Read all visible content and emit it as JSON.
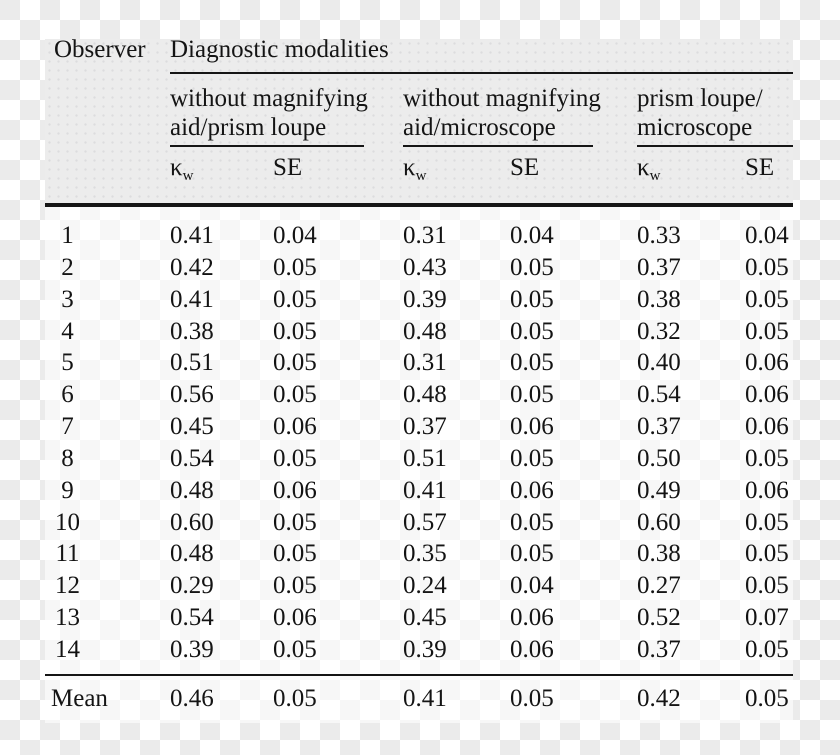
{
  "table": {
    "observer_header": "Observer",
    "modalities_header": "Diagnostic modalities",
    "groups": [
      {
        "line1": "without magnifying",
        "line2": "aid/prism loupe"
      },
      {
        "line1": "without magnifying",
        "line2": "aid/microscope"
      },
      {
        "line1": "prism loupe/",
        "line2": "microscope"
      }
    ],
    "stat_headers": {
      "kappa": "κ",
      "kappa_sub": "w",
      "se": "SE"
    },
    "rows": [
      {
        "observer": "1",
        "values": [
          "0.41",
          "0.04",
          "0.31",
          "0.04",
          "0.33",
          "0.04"
        ]
      },
      {
        "observer": "2",
        "values": [
          "0.42",
          "0.05",
          "0.43",
          "0.05",
          "0.37",
          "0.05"
        ]
      },
      {
        "observer": "3",
        "values": [
          "0.41",
          "0.05",
          "0.39",
          "0.05",
          "0.38",
          "0.05"
        ]
      },
      {
        "observer": "4",
        "values": [
          "0.38",
          "0.05",
          "0.48",
          "0.05",
          "0.32",
          "0.05"
        ]
      },
      {
        "observer": "5",
        "values": [
          "0.51",
          "0.05",
          "0.31",
          "0.05",
          "0.40",
          "0.06"
        ]
      },
      {
        "observer": "6",
        "values": [
          "0.56",
          "0.05",
          "0.48",
          "0.05",
          "0.54",
          "0.06"
        ]
      },
      {
        "observer": "7",
        "values": [
          "0.45",
          "0.06",
          "0.37",
          "0.06",
          "0.37",
          "0.06"
        ]
      },
      {
        "observer": "8",
        "values": [
          "0.54",
          "0.05",
          "0.51",
          "0.05",
          "0.50",
          "0.05"
        ]
      },
      {
        "observer": "9",
        "values": [
          "0.48",
          "0.06",
          "0.41",
          "0.06",
          "0.49",
          "0.06"
        ]
      },
      {
        "observer": "10",
        "values": [
          "0.60",
          "0.05",
          "0.57",
          "0.05",
          "0.60",
          "0.05"
        ]
      },
      {
        "observer": "11",
        "values": [
          "0.48",
          "0.05",
          "0.35",
          "0.05",
          "0.38",
          "0.05"
        ]
      },
      {
        "observer": "12",
        "values": [
          "0.29",
          "0.05",
          "0.24",
          "0.04",
          "0.27",
          "0.05"
        ]
      },
      {
        "observer": "13",
        "values": [
          "0.54",
          "0.06",
          "0.45",
          "0.06",
          "0.52",
          "0.07"
        ]
      },
      {
        "observer": "14",
        "values": [
          "0.39",
          "0.05",
          "0.39",
          "0.06",
          "0.37",
          "0.05"
        ]
      }
    ],
    "mean_row": {
      "observer": "Mean",
      "values": [
        "0.46",
        "0.05",
        "0.41",
        "0.05",
        "0.42",
        "0.05"
      ]
    }
  },
  "colors": {
    "header_panel_bg": "#ececec",
    "checker_gray": "#ebebeb",
    "ink": "#141414"
  }
}
